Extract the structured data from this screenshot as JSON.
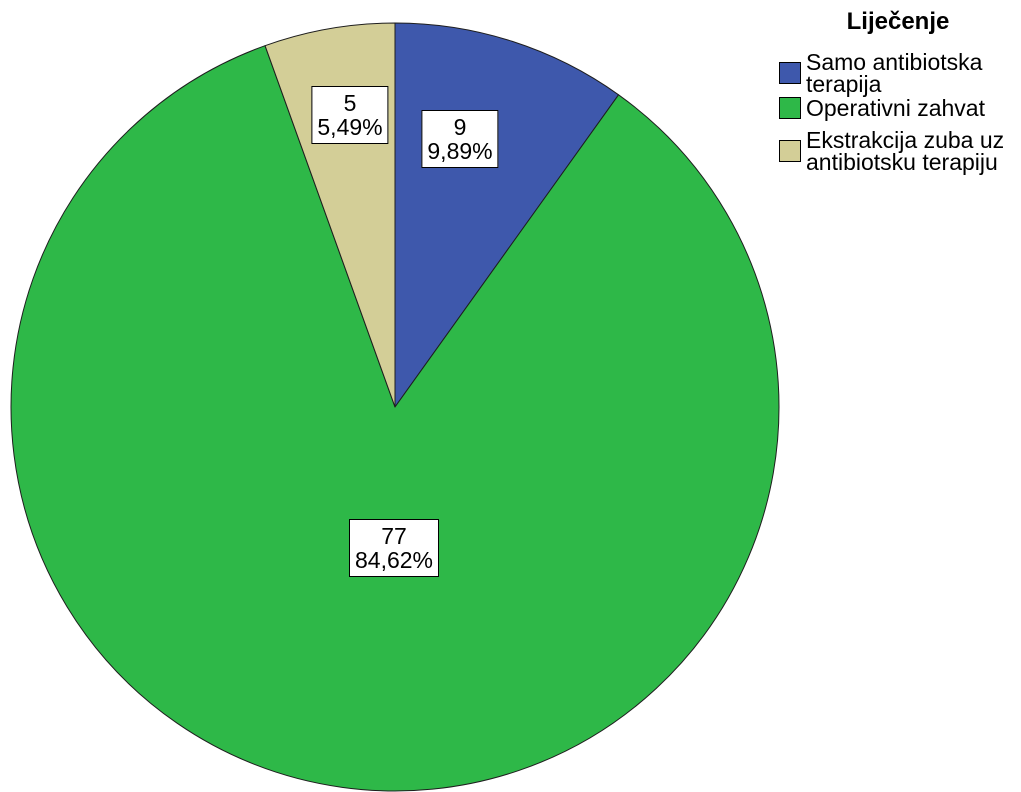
{
  "chart_data": {
    "type": "pie",
    "categories": [
      "Samo antibiotska terapija",
      "Operativni zahvat",
      "Ekstrakcija zuba uz antibiotsku terapiju"
    ],
    "values": [
      9,
      77,
      5
    ],
    "percent_labels": [
      "9,89%",
      "84,62%",
      "5,49%"
    ],
    "colors": [
      "#3e58ac",
      "#2eb848",
      "#d3ce97"
    ],
    "legend_title": "Liječenje",
    "legend_position": "top-right"
  }
}
